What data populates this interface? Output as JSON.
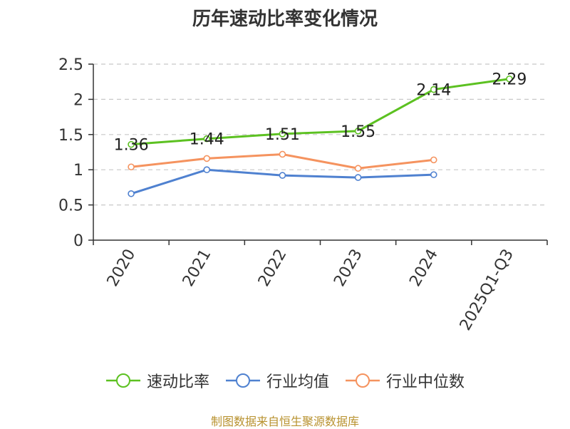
{
  "chart_data": {
    "type": "line",
    "title": "历年速动比率变化情况",
    "categories": [
      "2020",
      "2021",
      "2022",
      "2023",
      "2024",
      "2025Q1-Q3"
    ],
    "ylim": [
      0,
      2.5
    ],
    "yticks": [
      "0",
      "0.5",
      "1",
      "1.5",
      "2",
      "2.5"
    ],
    "grid": true,
    "legend_position": "bottom",
    "series": [
      {
        "name": "速动比率",
        "color": "#5cc121",
        "values": [
          1.36,
          1.44,
          1.51,
          1.55,
          2.14,
          2.29
        ],
        "labels": [
          "1.36",
          "1.44",
          "1.51",
          "1.55",
          "2.14",
          "2.29"
        ]
      },
      {
        "name": "行业均值",
        "color": "#4f81d0",
        "values": [
          0.66,
          1.0,
          0.92,
          0.89,
          0.93,
          null
        ]
      },
      {
        "name": "行业中位数",
        "color": "#f5935f",
        "values": [
          1.04,
          1.16,
          1.22,
          1.02,
          1.14,
          null
        ]
      }
    ]
  },
  "source": "制图数据来自恒生聚源数据库"
}
